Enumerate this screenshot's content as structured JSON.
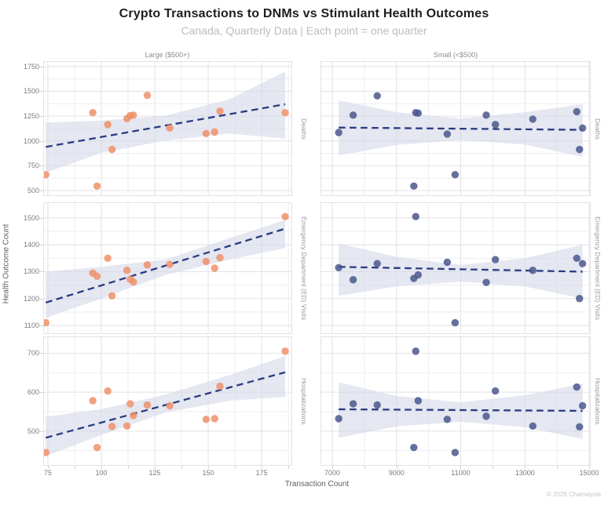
{
  "header": {
    "title": "Crypto Transactions to DNMs vs Stimulant Health Outcomes",
    "subtitle": "Canada, Quarterly Data | Each point = one quarter"
  },
  "footer": {
    "credit": "© 2026 Chainalysis"
  },
  "chart_data": {
    "type": "scatter",
    "layout": "facet_grid: 2 columns (transaction size) x 3 rows (health outcome), regression line with confidence band per panel",
    "xlabel": "Transaction Count",
    "ylabel": "Health Outcome Count",
    "trend_color": "#2a3b80",
    "band_color": "#d5d9e8",
    "grid": true,
    "columns": [
      {
        "key": "large",
        "label": "Large ($500+)",
        "point_color": "#ef9168",
        "xlim": [
          72.8,
          189.3
        ],
        "tick_labels": [
          75,
          100,
          125,
          150,
          175
        ],
        "gridlines": {
          "start": 75,
          "end": 187.5,
          "step": 12.5
        },
        "x": [
          74,
          96,
          98,
          103,
          105,
          112,
          113.5,
          115,
          121.5,
          132,
          149,
          153,
          155.5,
          186
        ]
      },
      {
        "key": "small",
        "label": "Small (<$500)",
        "point_color": "#4a578c",
        "xlim": [
          6633,
          15049
        ],
        "tick_labels": [
          7000,
          9000,
          11000,
          13000,
          15000
        ],
        "gridlines": {
          "start": 7000,
          "end": 15000,
          "step": 1000
        },
        "x": [
          7200,
          7650,
          8400,
          9540,
          9600,
          9675,
          10580,
          10825,
          11795,
          12080,
          13245,
          14615,
          14700,
          14795
        ]
      }
    ],
    "rows": [
      {
        "key": "deaths",
        "label": "Deaths",
        "ylim": [
          445,
          1804
        ],
        "tick_labels": [
          500,
          750,
          1000,
          1250,
          1500,
          1750
        ],
        "gridlines": {
          "start": 500,
          "end": 1750,
          "step": 125
        }
      },
      {
        "key": "ed",
        "label": "Emergency Department (ED) Visits",
        "ylim": [
          1068,
          1558
        ],
        "tick_labels": [
          1100,
          1200,
          1300,
          1400,
          1500
        ],
        "gridlines": {
          "start": 1100,
          "end": 1500,
          "step": 50
        }
      },
      {
        "key": "hosp",
        "label": "Hospitalizations",
        "ylim": [
          411,
          743
        ],
        "tick_labels": [
          500,
          600,
          700
        ],
        "gridlines": {
          "start": 450,
          "end": 700,
          "step": 50
        }
      }
    ],
    "panels": [
      {
        "row": "deaths",
        "col": "large",
        "points_y": [
          660,
          1285,
          545,
          1165,
          915,
          1225,
          1255,
          1260,
          1460,
          1130,
          1075,
          1090,
          1300,
          1285
        ],
        "trend": {
          "x": [
            74,
            186
          ],
          "y": [
            940,
            1370
          ]
        },
        "band": {
          "x": [
            74,
            100,
            130,
            160,
            186
          ],
          "lo": [
            680,
            880,
            1005,
            1075,
            1025
          ],
          "hi": [
            1185,
            1205,
            1255,
            1420,
            1700
          ]
        }
      },
      {
        "row": "deaths",
        "col": "small",
        "points_y": [
          1085,
          1260,
          1455,
          545,
          1285,
          1280,
          1070,
          660,
          1260,
          1165,
          1220,
          1295,
          915,
          1130
        ],
        "trend": {
          "x": [
            7200,
            14795
          ],
          "y": [
            1135,
            1112
          ]
        },
        "band": {
          "x": [
            7200,
            9000,
            11000,
            13000,
            14795
          ],
          "lo": [
            855,
            960,
            1010,
            965,
            840
          ],
          "hi": [
            1410,
            1290,
            1225,
            1290,
            1370
          ]
        }
      },
      {
        "row": "ed",
        "col": "large",
        "points_y": [
          1110,
          1295,
          1283,
          1350,
          1210,
          1305,
          1272,
          1262,
          1325,
          1327,
          1338,
          1313,
          1352,
          1505
        ],
        "trend": {
          "x": [
            74,
            186
          ],
          "y": [
            1185,
            1460
          ]
        },
        "band": {
          "x": [
            74,
            100,
            130,
            160,
            186
          ],
          "lo": [
            1128,
            1200,
            1288,
            1345,
            1388
          ],
          "hi": [
            1300,
            1318,
            1345,
            1425,
            1492
          ]
        }
      },
      {
        "row": "ed",
        "col": "small",
        "points_y": [
          1315,
          1270,
          1330,
          1275,
          1505,
          1288,
          1335,
          1110,
          1260,
          1345,
          1305,
          1350,
          1200,
          1330
        ],
        "trend": {
          "x": [
            7200,
            14795
          ],
          "y": [
            1318,
            1300
          ]
        },
        "band": {
          "x": [
            7200,
            9000,
            11000,
            13000,
            14795
          ],
          "lo": [
            1210,
            1245,
            1263,
            1245,
            1200
          ],
          "hi": [
            1405,
            1355,
            1325,
            1350,
            1400
          ]
        }
      },
      {
        "row": "hosp",
        "col": "large",
        "points_y": [
          445,
          578,
          458,
          603,
          512,
          513,
          570,
          540,
          567,
          565,
          530,
          532,
          615,
          705
        ],
        "trend": {
          "x": [
            74,
            186
          ],
          "y": [
            483,
            651
          ]
        },
        "band": {
          "x": [
            74,
            100,
            130,
            160,
            186
          ],
          "lo": [
            436,
            490,
            548,
            578,
            588
          ],
          "hi": [
            537,
            556,
            594,
            644,
            692
          ]
        }
      },
      {
        "row": "hosp",
        "col": "small",
        "points_y": [
          532,
          570,
          567,
          458,
          705,
          578,
          530,
          445,
          538,
          603,
          513,
          613,
          511,
          565
        ],
        "trend": {
          "x": [
            7200,
            14795
          ],
          "y": [
            556,
            552
          ]
        },
        "band": {
          "x": [
            7200,
            9000,
            11000,
            13000,
            14795
          ],
          "lo": [
            483,
            512,
            524,
            510,
            480
          ],
          "hi": [
            625,
            590,
            574,
            592,
            622
          ]
        }
      }
    ]
  }
}
